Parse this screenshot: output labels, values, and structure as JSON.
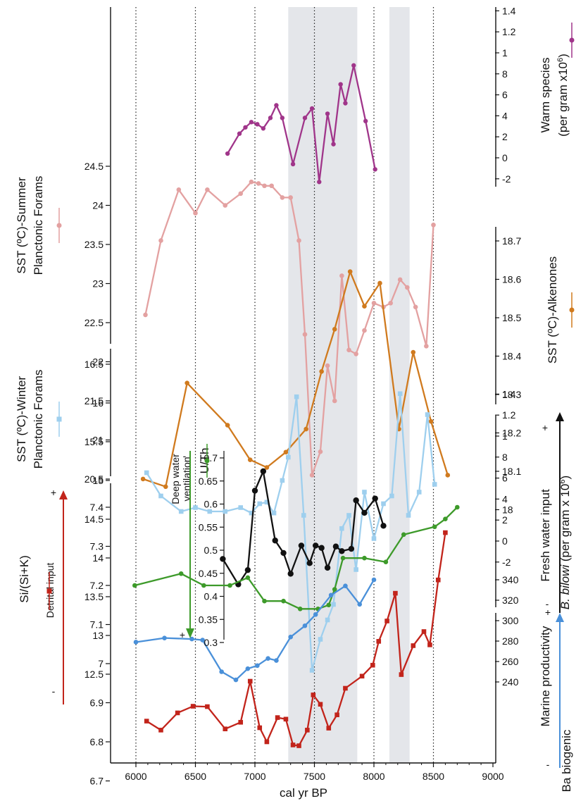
{
  "chart_data": {
    "type": "line",
    "xlabel": "cal yr BP",
    "xlim": [
      5800,
      9000
    ],
    "x_ticks": [
      6000,
      6500,
      7000,
      7500,
      8000,
      8500,
      9000
    ],
    "vertical_dotted_lines": [
      6000,
      6500,
      7000,
      7500,
      8000,
      8500
    ],
    "shaded_intervals": [
      [
        7280,
        7860
      ],
      [
        8130,
        8300
      ]
    ],
    "axes": {
      "warm": {
        "label_line1": "Warm species",
        "label_line2": "(per gram x10",
        "label_sup": "6",
        "label_end": ")",
        "ticks": [
          "1.4",
          "1.2",
          "1",
          "8",
          "6",
          "4",
          "2",
          "0",
          "-2"
        ],
        "side": "right"
      },
      "sst_summer": {
        "label_line1": "SST (ºC)-Summer",
        "label_line2": "Planctonic Forams",
        "ticks": [
          "24.5",
          "24",
          "23.5",
          "23",
          "22.5",
          "22",
          "21.5",
          "21",
          "20.5"
        ],
        "side": "left"
      },
      "alkenones": {
        "label_line1": "SST (ºC)-Alkenones",
        "ticks": [
          "18.7",
          "18.6",
          "18.5",
          "18.4",
          "18.3",
          "18.2",
          "18.1",
          "18"
        ],
        "side": "right"
      },
      "sst_winter": {
        "label_line1": "SST (ºC)-Winter",
        "label_line2": "Planctonic Forams",
        "ticks": [
          "16.5",
          "16",
          "15.5",
          "15",
          "14.5",
          "14",
          "13.5",
          "13",
          "12.5"
        ],
        "side": "left"
      },
      "bilowi": {
        "label_pre": "B. bilowi",
        "label_post": " (per gram x 10",
        "label_sup": "6",
        "label_end": ")",
        "label_fresh": "Fresh water input",
        "plus": "+",
        "minus": "-",
        "ticks": [
          "1.4",
          "1.2",
          "1",
          "8",
          "6",
          "4",
          "2",
          "0",
          "-2"
        ],
        "side": "right"
      },
      "uth": {
        "label_uth": "U/Th",
        "label_dw1": "Deep water",
        "label_dw2": "ventilation",
        "minus": "-",
        "plus": "+",
        "ticks": [
          "0.7",
          "0.65",
          "0.6",
          "0.55",
          "0.5",
          "0.45",
          "0.4",
          "0.35",
          "0.3"
        ],
        "side": "inner-left"
      },
      "sisik": {
        "label_line1": "Si/(Si+K)",
        "label_detrital": "Detrital input",
        "plus": "+",
        "minus": "-",
        "ticks": [
          "7.4",
          "7.3",
          "7.2",
          "7.1",
          "7",
          "6.9",
          "6.8",
          "6.7"
        ],
        "side": "left"
      },
      "bio": {
        "label_marine": "Marine productivity",
        "label_bio": "Ba biogenic",
        "plus": "+",
        "minus": "-",
        "ticks": [
          "340",
          "320",
          "300",
          "280",
          "260",
          "240"
        ],
        "side": "right"
      }
    },
    "series": [
      {
        "name": "Warm species",
        "color": "#a0358a",
        "marker": "diamond",
        "axis": "warm",
        "points": [
          [
            6770,
            0.4
          ],
          [
            6870,
            2.3
          ],
          [
            6920,
            2.9
          ],
          [
            6970,
            3.4
          ],
          [
            7020,
            3.2
          ],
          [
            7070,
            2.8
          ],
          [
            7130,
            3.8
          ],
          [
            7180,
            5.0
          ],
          [
            7230,
            3.8
          ],
          [
            7320,
            -0.6
          ],
          [
            7420,
            3.8
          ],
          [
            7480,
            4.7
          ],
          [
            7540,
            -2.3
          ],
          [
            7610,
            4.2
          ],
          [
            7660,
            1.3
          ],
          [
            7720,
            7.0
          ],
          [
            7760,
            5.2
          ],
          [
            7830,
            8.8
          ],
          [
            7930,
            3.5
          ],
          [
            8010,
            -1.1
          ]
        ]
      },
      {
        "name": "SST Summer",
        "color": "#e3a1a1",
        "marker": "circle",
        "axis": "sst_summer",
        "points": [
          [
            6080,
            22.6
          ],
          [
            6210,
            23.55
          ],
          [
            6360,
            24.2
          ],
          [
            6500,
            23.9
          ],
          [
            6600,
            24.2
          ],
          [
            6750,
            24.0
          ],
          [
            6880,
            24.15
          ],
          [
            6970,
            24.3
          ],
          [
            7030,
            24.28
          ],
          [
            7080,
            24.25
          ],
          [
            7140,
            24.25
          ],
          [
            7230,
            24.1
          ],
          [
            7300,
            24.1
          ],
          [
            7370,
            23.55
          ],
          [
            7420,
            22.35
          ],
          [
            7480,
            20.55
          ],
          [
            7550,
            20.85
          ],
          [
            7610,
            21.95
          ],
          [
            7670,
            21.5
          ],
          [
            7730,
            23.1
          ],
          [
            7790,
            22.15
          ],
          [
            7850,
            22.1
          ],
          [
            7920,
            22.4
          ],
          [
            8000,
            22.75
          ],
          [
            8080,
            22.7
          ],
          [
            8140,
            22.75
          ],
          [
            8220,
            23.05
          ],
          [
            8280,
            22.95
          ],
          [
            8350,
            22.7
          ],
          [
            8440,
            22.2
          ],
          [
            8500,
            23.75
          ]
        ]
      },
      {
        "name": "SST Alkenones",
        "color": "#d07a1e",
        "marker": "circle",
        "axis": "alkenones",
        "points": [
          [
            6060,
            18.08
          ],
          [
            6250,
            18.06
          ],
          [
            6430,
            18.33
          ],
          [
            6770,
            18.22
          ],
          [
            6960,
            18.13
          ],
          [
            7100,
            18.11
          ],
          [
            7260,
            18.15
          ],
          [
            7430,
            18.21
          ],
          [
            7560,
            18.36
          ],
          [
            7670,
            18.47
          ],
          [
            7800,
            18.62
          ],
          [
            7920,
            18.53
          ],
          [
            8050,
            18.59
          ],
          [
            8210,
            18.21
          ],
          [
            8330,
            18.41
          ],
          [
            8480,
            18.23
          ],
          [
            8620,
            18.09
          ]
        ]
      },
      {
        "name": "SST Winter",
        "color": "#9ecfee",
        "marker": "square",
        "axis": "sst_winter",
        "points": [
          [
            6090,
            15.1
          ],
          [
            6210,
            14.8
          ],
          [
            6380,
            14.6
          ],
          [
            6500,
            14.65
          ],
          [
            6620,
            14.6
          ],
          [
            6750,
            14.6
          ],
          [
            6880,
            14.65
          ],
          [
            6970,
            14.58
          ],
          [
            7040,
            14.7
          ],
          [
            7100,
            14.72
          ],
          [
            7160,
            14.58
          ],
          [
            7230,
            15.0
          ],
          [
            7280,
            15.3
          ],
          [
            7350,
            16.08
          ],
          [
            7410,
            14.55
          ],
          [
            7480,
            12.55
          ],
          [
            7550,
            12.95
          ],
          [
            7610,
            13.2
          ],
          [
            7660,
            13.4
          ],
          [
            7730,
            14.38
          ],
          [
            7790,
            14.55
          ],
          [
            7850,
            13.85
          ],
          [
            7920,
            14.85
          ],
          [
            8000,
            14.25
          ],
          [
            8080,
            14.7
          ],
          [
            8150,
            14.8
          ],
          [
            8220,
            16.12
          ],
          [
            8290,
            14.55
          ],
          [
            8380,
            14.85
          ],
          [
            8450,
            15.85
          ],
          [
            8510,
            14.95
          ]
        ]
      },
      {
        "name": "U/Th",
        "color": "#111111",
        "marker": "circle",
        "axis": "uth",
        "points": [
          [
            6730,
            0.481
          ],
          [
            6860,
            0.426
          ],
          [
            6940,
            0.457
          ],
          [
            7000,
            0.629
          ],
          [
            7070,
            0.671
          ],
          [
            7170,
            0.521
          ],
          [
            7240,
            0.494
          ],
          [
            7300,
            0.449
          ],
          [
            7390,
            0.51
          ],
          [
            7460,
            0.472
          ],
          [
            7510,
            0.51
          ],
          [
            7560,
            0.505
          ],
          [
            7610,
            0.462
          ],
          [
            7680,
            0.508
          ],
          [
            7730,
            0.498
          ],
          [
            7810,
            0.503
          ],
          [
            7850,
            0.608
          ],
          [
            7920,
            0.581
          ],
          [
            8010,
            0.612
          ],
          [
            8080,
            0.553
          ]
        ]
      },
      {
        "name": "Si/(Si+K)",
        "color": "#3d9a2a",
        "marker": "circle",
        "axis": "sisik",
        "points": [
          [
            5990,
            7.2
          ],
          [
            6380,
            7.23
          ],
          [
            6570,
            7.2
          ],
          [
            6790,
            7.2
          ],
          [
            6940,
            7.22
          ],
          [
            7080,
            7.16
          ],
          [
            7240,
            7.16
          ],
          [
            7380,
            7.14
          ],
          [
            7530,
            7.14
          ],
          [
            7620,
            7.15
          ],
          [
            7670,
            7.19
          ],
          [
            7740,
            7.27
          ],
          [
            7920,
            7.27
          ],
          [
            8100,
            7.26
          ],
          [
            8250,
            7.33
          ],
          [
            8510,
            7.35
          ],
          [
            8600,
            7.37
          ],
          [
            8700,
            7.4
          ]
        ]
      },
      {
        "name": "Detrital input",
        "color": "#c2241b",
        "marker": "square",
        "axis": "sisik",
        "points": [
          [
            6090,
            6.853
          ],
          [
            6210,
            6.83
          ],
          [
            6350,
            6.874
          ],
          [
            6480,
            6.891
          ],
          [
            6600,
            6.89
          ],
          [
            6750,
            6.833
          ],
          [
            6880,
            6.85
          ],
          [
            6960,
            6.955
          ],
          [
            7040,
            6.836
          ],
          [
            7100,
            6.8
          ],
          [
            7190,
            6.862
          ],
          [
            7260,
            6.858
          ],
          [
            7320,
            6.792
          ],
          [
            7370,
            6.79
          ],
          [
            7440,
            6.83
          ],
          [
            7490,
            6.92
          ],
          [
            7550,
            6.896
          ],
          [
            7620,
            6.835
          ],
          [
            7690,
            6.869
          ],
          [
            7760,
            6.937
          ],
          [
            7900,
            6.968
          ],
          [
            7990,
            6.996
          ],
          [
            8040,
            7.057
          ],
          [
            8110,
            7.109
          ],
          [
            8180,
            7.18
          ],
          [
            8230,
            6.972
          ],
          [
            8330,
            7.046
          ],
          [
            8420,
            7.082
          ],
          [
            8470,
            7.048
          ],
          [
            8540,
            7.214
          ],
          [
            8600,
            7.335
          ]
        ]
      },
      {
        "name": "Ba biogenic",
        "color": "#4a90d9",
        "marker": "circle",
        "axis": "bio",
        "points": [
          [
            6000,
            279
          ],
          [
            6240,
            283
          ],
          [
            6470,
            282
          ],
          [
            6560,
            281
          ],
          [
            6720,
            250
          ],
          [
            6840,
            242
          ],
          [
            6940,
            253
          ],
          [
            7020,
            256
          ],
          [
            7110,
            263
          ],
          [
            7180,
            261
          ],
          [
            7300,
            284
          ],
          [
            7420,
            295
          ],
          [
            7510,
            306
          ],
          [
            7640,
            325
          ],
          [
            7760,
            334
          ],
          [
            7880,
            316
          ],
          [
            8000,
            340
          ]
        ]
      }
    ]
  }
}
